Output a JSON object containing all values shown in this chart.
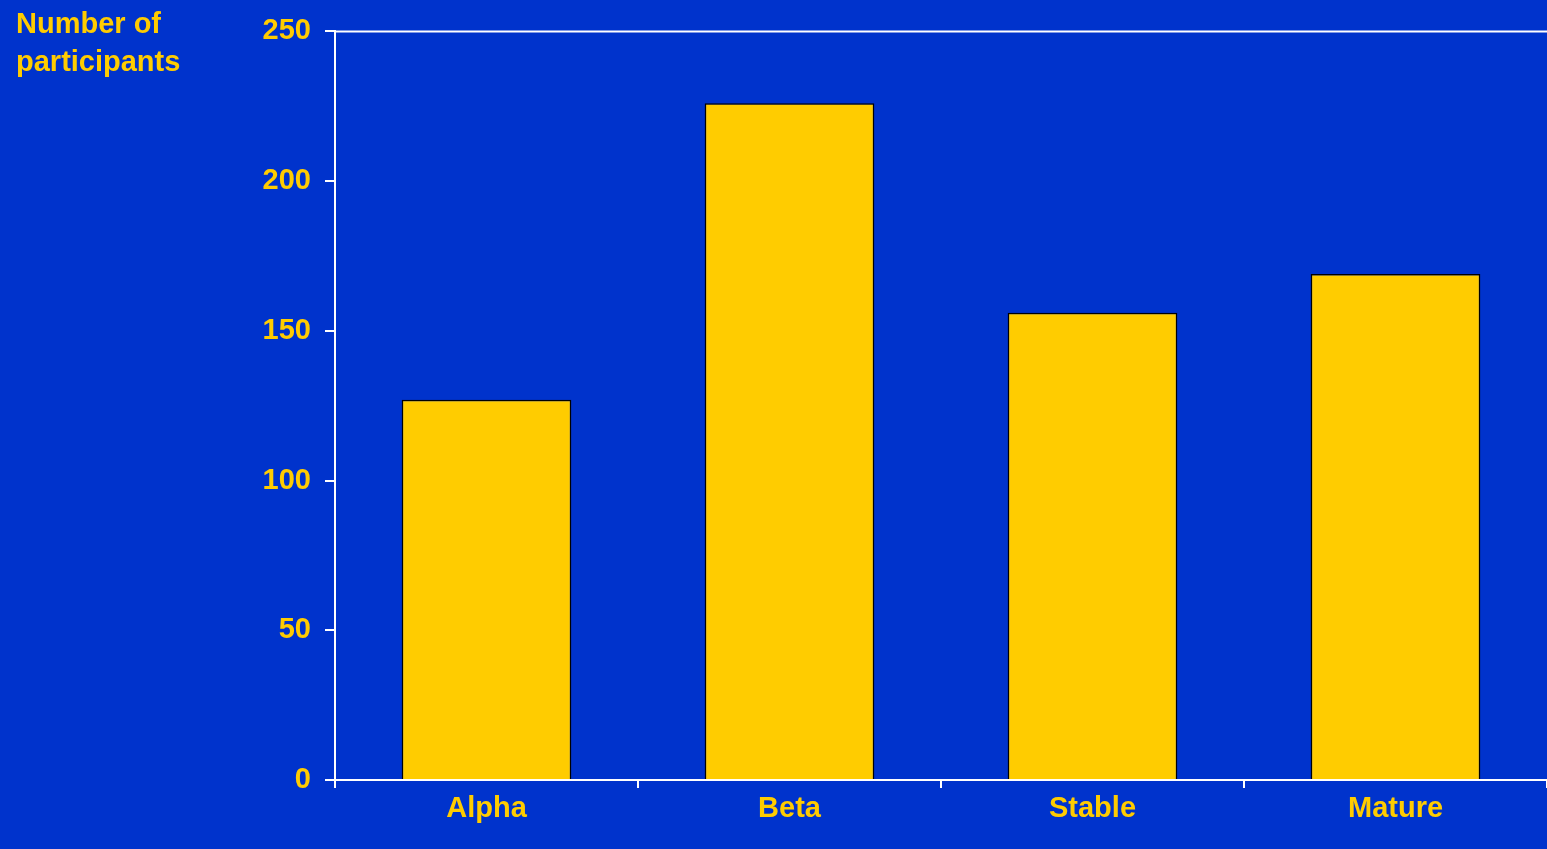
{
  "chart_data": {
    "type": "bar",
    "ylabel": "Number of participants",
    "categories": [
      "Alpha",
      "Beta",
      "Stable",
      "Mature"
    ],
    "values": [
      127,
      226,
      156,
      169
    ],
    "color": "#ffcc00",
    "ylim": [
      0,
      250
    ],
    "yticks": [
      0,
      50,
      100,
      150,
      200,
      250
    ],
    "grid": false,
    "legend": false
  }
}
